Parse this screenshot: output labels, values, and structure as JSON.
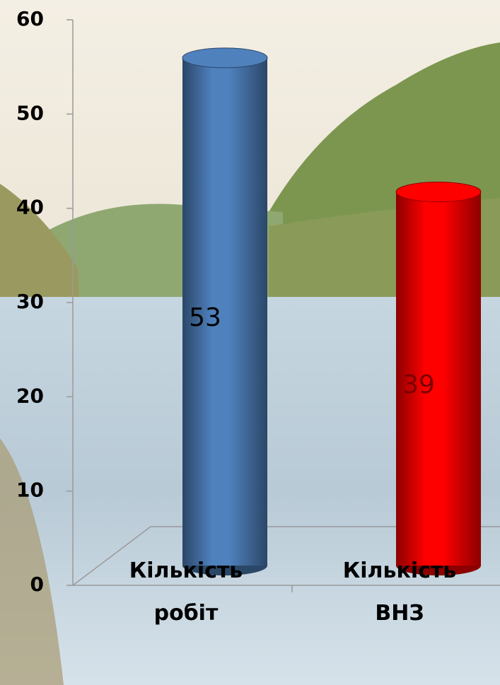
{
  "chart_data": {
    "type": "bar",
    "categories": [
      "Кількість робіт",
      "Кількість ВНЗ"
    ],
    "values": [
      53,
      39
    ],
    "colors": [
      "#4f81bd",
      "#ff0000"
    ],
    "ylim": [
      0,
      60
    ],
    "yticks": [
      0,
      10,
      20,
      30,
      40,
      50,
      60
    ]
  }
}
